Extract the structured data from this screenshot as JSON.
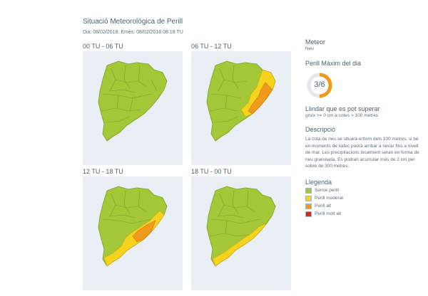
{
  "header": {
    "title": "Situació Meteorològica de Perill",
    "subtitle": "Dia: 08/02/2018. Emès: 08/02/2018 08:18 TU"
  },
  "periods": [
    {
      "label": "00 TU - 06 TU"
    },
    {
      "label": "06 TU - 12 TU"
    },
    {
      "label": "12 TU - 18 TU"
    },
    {
      "label": "18 TU - 00 TU"
    }
  ],
  "sidebar": {
    "meteor_title": "Meteor",
    "meteor_value": "Neu",
    "max_title": "Perill Màxim del dia",
    "max_value": "3/6",
    "max_fraction": 0.5,
    "threshold_title": "Llindar que es pot superar",
    "threshold_value": "gruix >= 0 cm a cotes > 100 metres",
    "description_title": "Descripció",
    "description_text": "La cota de neu se situarà entorn dels 100 metres, si bé en moments de xàfec podrà arribar a nevar fins a nivell de mar. Les precipitacions localment seran en forma de neu granulada. Es podran acumular més de 2 cm per sobre de 300 metres.",
    "legend_title": "Llegenda",
    "legend": [
      {
        "label": "Sense perill",
        "color": "#a3c737"
      },
      {
        "label": "Perill moderat",
        "color": "#f5d21c"
      },
      {
        "label": "Perill alt",
        "color": "#ef9a1c"
      },
      {
        "label": "Perill molt alt",
        "color": "#d7261c"
      }
    ]
  },
  "colors": {
    "green": "#a3c737",
    "yellow": "#f5d21c",
    "orange": "#ef9a1c",
    "border": "#7f9c26"
  }
}
